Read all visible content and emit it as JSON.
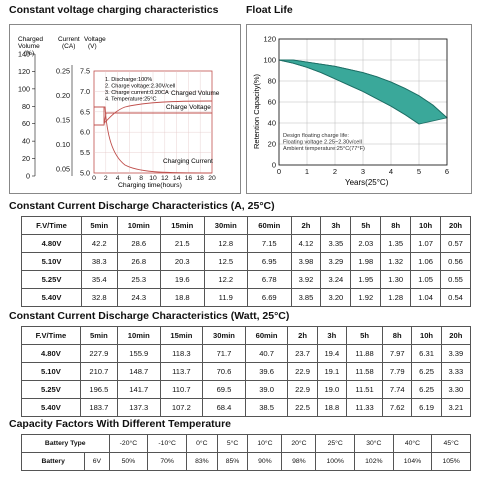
{
  "sections": {
    "cv_title": "Constant voltage charging characteristics",
    "float_title": "Float Life",
    "current_title": "Constant Current Discharge Characteristics (A, 25°C)",
    "watt_title": "Constant Current Discharge Characteristics (Watt, 25°C)",
    "capacity_title": "Capacity Factors With Different Temperature"
  },
  "cv_chart": {
    "axis_titles": {
      "charged_volume": "Charged\nVolume\n(%)",
      "current": "Current\n(CA)",
      "voltage": "Voltage\n(V)"
    },
    "ticks_volume": [
      "140",
      "120",
      "100",
      "80",
      "60",
      "40",
      "20",
      "0"
    ],
    "ticks_current": [
      "0.25",
      "0.20",
      "0.15",
      "0.10",
      "0.05"
    ],
    "ticks_voltage": [
      "7.5",
      "7.0",
      "6.5",
      "6.0",
      "5.5",
      "5.0"
    ],
    "ticks_x": [
      "0",
      "2",
      "4",
      "6",
      "8",
      "10",
      "12",
      "14",
      "16",
      "18",
      "20"
    ],
    "xlabel": "Charging time(hours)",
    "notes": [
      "1. Discharge:100%",
      "2. Charge voltage:2.30V/cell",
      "3. Charge current:0.20CA",
      "4. Temperature:25°C"
    ],
    "curve_labels": {
      "volume": "Charged Volume",
      "voltage": "Charge Voltage",
      "current": "Charging Current"
    }
  },
  "chart_data": {
    "type": "area",
    "title": "Float Life",
    "xlabel": "Years(25°C)",
    "ylabel": "Retention Capacity(%)",
    "xlim": [
      0,
      6
    ],
    "ylim": [
      0,
      120
    ],
    "xticks": [
      "0",
      "1",
      "2",
      "3",
      "4",
      "5",
      "6"
    ],
    "yticks": [
      "0",
      "20",
      "40",
      "60",
      "80",
      "100",
      "120"
    ],
    "series": [
      {
        "x": [
          0,
          0.5,
          1,
          1.5,
          2,
          2.5,
          3,
          3.5,
          4,
          4.5,
          5,
          5.5,
          6
        ],
        "values": [
          100,
          100,
          98,
          96,
          94,
          91,
          88,
          84,
          79,
          73,
          66,
          57,
          45
        ]
      },
      {
        "x": [
          0,
          0.5,
          1,
          1.5,
          2,
          2.5,
          3,
          3.5,
          4,
          4.5,
          5
        ],
        "values": [
          100,
          97,
          93,
          88,
          82,
          76,
          70,
          63,
          56,
          48,
          39
        ]
      }
    ],
    "annotation": [
      "Design floating charge life:",
      "Floating voltage 2.25~2.30v/cell",
      "Ambient temperature:25°C(77°F)"
    ],
    "grid": true
  },
  "current_table": {
    "headers": [
      "F.V/Time",
      "5min",
      "10min",
      "15min",
      "30min",
      "60min",
      "2h",
      "3h",
      "5h",
      "8h",
      "10h",
      "20h"
    ],
    "rows": [
      [
        "4.80V",
        "42.2",
        "28.6",
        "21.5",
        "12.8",
        "7.15",
        "4.12",
        "3.35",
        "2.03",
        "1.35",
        "1.07",
        "0.57"
      ],
      [
        "5.10V",
        "38.3",
        "26.8",
        "20.3",
        "12.5",
        "6.95",
        "3.98",
        "3.29",
        "1.98",
        "1.32",
        "1.06",
        "0.56"
      ],
      [
        "5.25V",
        "35.4",
        "25.3",
        "19.6",
        "12.2",
        "6.78",
        "3.92",
        "3.24",
        "1.95",
        "1.30",
        "1.05",
        "0.55"
      ],
      [
        "5.40V",
        "32.8",
        "24.3",
        "18.8",
        "11.9",
        "6.69",
        "3.85",
        "3.20",
        "1.92",
        "1.28",
        "1.04",
        "0.54"
      ]
    ]
  },
  "watt_table": {
    "headers": [
      "F.V/Time",
      "5min",
      "10min",
      "15min",
      "30min",
      "60min",
      "2h",
      "3h",
      "5h",
      "8h",
      "10h",
      "20h"
    ],
    "rows": [
      [
        "4.80V",
        "227.9",
        "155.9",
        "118.3",
        "71.7",
        "40.7",
        "23.7",
        "19.4",
        "11.88",
        "7.97",
        "6.31",
        "3.39"
      ],
      [
        "5.10V",
        "210.7",
        "148.7",
        "113.7",
        "70.6",
        "39.6",
        "22.9",
        "19.1",
        "11.58",
        "7.79",
        "6.25",
        "3.33"
      ],
      [
        "5.25V",
        "196.5",
        "141.7",
        "110.7",
        "69.5",
        "39.0",
        "22.9",
        "19.0",
        "11.51",
        "7.74",
        "6.25",
        "3.30"
      ],
      [
        "5.40V",
        "183.7",
        "137.3",
        "107.2",
        "68.4",
        "38.5",
        "22.5",
        "18.8",
        "11.33",
        "7.62",
        "6.19",
        "3.21"
      ]
    ]
  },
  "capacity_table": {
    "header_label": "Battery Type",
    "temps": [
      "-20°C",
      "-10°C",
      "0°C",
      "5°C",
      "10°C",
      "20°C",
      "25°C",
      "30°C",
      "40°C",
      "45°C"
    ],
    "row_label": "Battery",
    "row_type": "6V",
    "values": [
      "50%",
      "70%",
      "83%",
      "85%",
      "90%",
      "98%",
      "100%",
      "102%",
      "104%",
      "105%"
    ]
  },
  "colors": {
    "float_fill": "#3aa89a",
    "curve_red": "#c0504d"
  }
}
